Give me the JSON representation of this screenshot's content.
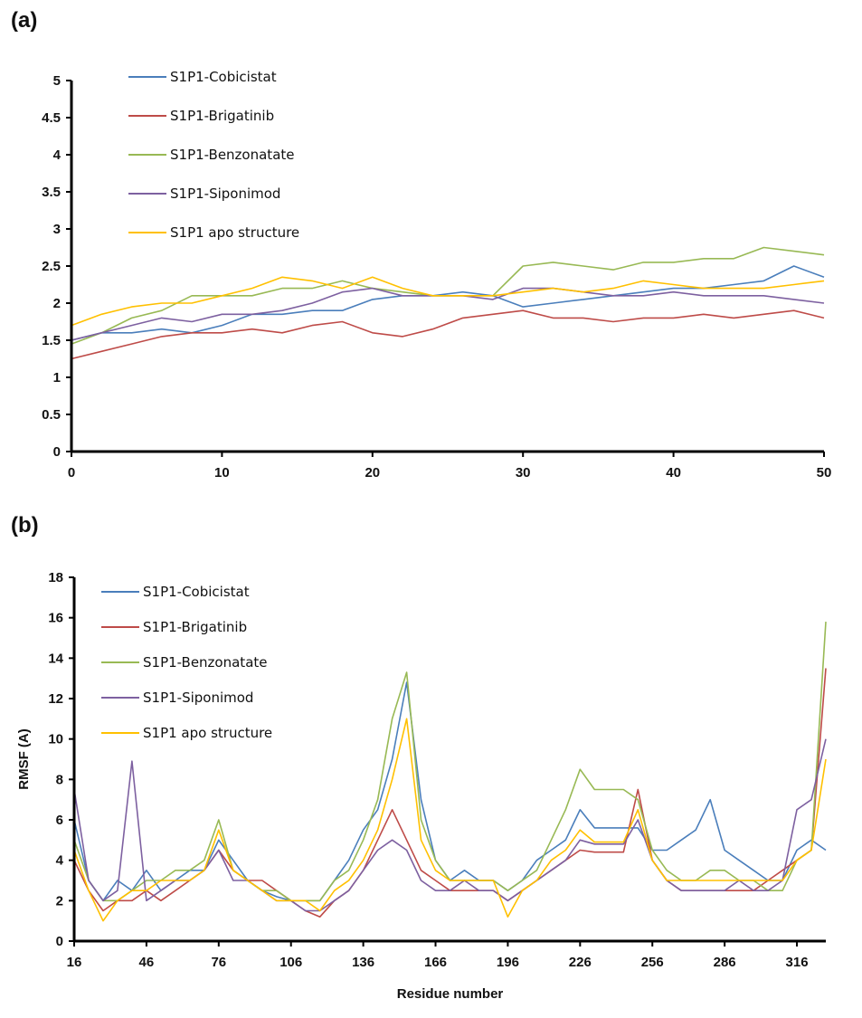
{
  "chart_data": [
    {
      "type": "line",
      "panel_label": "(a)",
      "xlabel": "",
      "ylabel": "",
      "xlim": [
        0,
        50
      ],
      "ylim": [
        0,
        5
      ],
      "xticks": [
        0,
        10,
        20,
        30,
        40,
        50
      ],
      "yticks": [
        0,
        0.5,
        1,
        1.5,
        2,
        2.5,
        3,
        3.5,
        4,
        4.5,
        5
      ],
      "grid": false,
      "legend_position": "top-left",
      "x": [
        0,
        2,
        4,
        6,
        8,
        10,
        12,
        14,
        16,
        18,
        20,
        22,
        24,
        26,
        28,
        30,
        32,
        34,
        36,
        38,
        40,
        42,
        44,
        46,
        48,
        50
      ],
      "series": [
        {
          "name": "S1P1-Cobicistat",
          "color": "#4a7ebb",
          "values": [
            1.5,
            1.6,
            1.6,
            1.65,
            1.6,
            1.7,
            1.85,
            1.85,
            1.9,
            1.9,
            2.05,
            2.1,
            2.1,
            2.15,
            2.1,
            1.95,
            2.0,
            2.05,
            2.1,
            2.15,
            2.2,
            2.2,
            2.25,
            2.3,
            2.5,
            2.35
          ]
        },
        {
          "name": "S1P1-Brigatinib",
          "color": "#be4b48",
          "values": [
            1.25,
            1.35,
            1.45,
            1.55,
            1.6,
            1.6,
            1.65,
            1.6,
            1.7,
            1.75,
            1.6,
            1.55,
            1.65,
            1.8,
            1.85,
            1.9,
            1.8,
            1.8,
            1.75,
            1.8,
            1.8,
            1.85,
            1.8,
            1.85,
            1.9,
            1.8
          ]
        },
        {
          "name": "S1P1-Benzonatate",
          "color": "#98b954",
          "values": [
            1.45,
            1.6,
            1.8,
            1.9,
            2.1,
            2.1,
            2.1,
            2.2,
            2.2,
            2.3,
            2.2,
            2.15,
            2.1,
            2.1,
            2.1,
            2.5,
            2.55,
            2.5,
            2.45,
            2.55,
            2.55,
            2.6,
            2.6,
            2.75,
            2.7,
            2.65
          ]
        },
        {
          "name": "S1P1-Siponimod",
          "color": "#7d60a0",
          "values": [
            1.5,
            1.6,
            1.7,
            1.8,
            1.75,
            1.85,
            1.85,
            1.9,
            2.0,
            2.15,
            2.2,
            2.1,
            2.1,
            2.1,
            2.05,
            2.2,
            2.2,
            2.15,
            2.1,
            2.1,
            2.15,
            2.1,
            2.1,
            2.1,
            2.05,
            2.0
          ]
        },
        {
          "name": "S1P1 apo structure",
          "color": "#ffc000",
          "values": [
            1.7,
            1.85,
            1.95,
            2.0,
            2.0,
            2.1,
            2.2,
            2.35,
            2.3,
            2.2,
            2.35,
            2.2,
            2.1,
            2.1,
            2.1,
            2.15,
            2.2,
            2.15,
            2.2,
            2.3,
            2.25,
            2.2,
            2.2,
            2.2,
            2.25,
            2.3
          ]
        }
      ]
    },
    {
      "type": "line",
      "panel_label": "(b)",
      "xlabel": "Residue number",
      "ylabel": "RMSF (A)",
      "xlim": [
        16,
        328
      ],
      "ylim": [
        0,
        18
      ],
      "xticks": [
        16,
        46,
        76,
        106,
        136,
        166,
        196,
        226,
        256,
        286,
        316
      ],
      "yticks": [
        0,
        2,
        4,
        6,
        8,
        10,
        12,
        14,
        16,
        18
      ],
      "grid": false,
      "legend_position": "top-left",
      "x": [
        16,
        22,
        28,
        34,
        40,
        46,
        52,
        58,
        64,
        70,
        76,
        82,
        88,
        94,
        100,
        106,
        112,
        118,
        124,
        130,
        136,
        142,
        148,
        154,
        160,
        166,
        172,
        178,
        184,
        190,
        196,
        202,
        208,
        214,
        220,
        226,
        232,
        238,
        244,
        250,
        256,
        262,
        268,
        274,
        280,
        286,
        292,
        298,
        304,
        310,
        316,
        322,
        328
      ],
      "series": [
        {
          "name": "S1P1-Cobicistat",
          "color": "#4a7ebb",
          "values": [
            6,
            3,
            2,
            3,
            2.5,
            3.5,
            2.5,
            3,
            3.5,
            3.5,
            5,
            4,
            3,
            2.5,
            2.2,
            2,
            2,
            2,
            3,
            4,
            5.5,
            6.5,
            9,
            12.8,
            7,
            4,
            3,
            3.5,
            3,
            3,
            2.5,
            3,
            4,
            4.5,
            5,
            6.5,
            5.6,
            5.6,
            5.6,
            5.6,
            4.5,
            4.5,
            5,
            5.5,
            7,
            4.5,
            4,
            3.5,
            3,
            3,
            4.5,
            5,
            4.5
          ]
        },
        {
          "name": "S1P1-Brigatinib",
          "color": "#be4b48",
          "values": [
            4,
            2.5,
            1.5,
            2,
            2,
            2.5,
            2,
            2.5,
            3,
            3.5,
            4.5,
            3.5,
            3,
            3,
            2.5,
            2,
            1.5,
            1.2,
            2,
            2.5,
            3.5,
            5,
            6.5,
            5,
            3.5,
            3,
            2.5,
            2.5,
            2.5,
            2.5,
            2,
            2.5,
            3,
            3.5,
            4,
            4.5,
            4.4,
            4.4,
            4.4,
            7.5,
            4,
            3,
            2.5,
            2.5,
            2.5,
            2.5,
            2.5,
            2.5,
            3,
            3.5,
            4,
            4.5,
            13.5
          ]
        },
        {
          "name": "S1P1-Benzonatate",
          "color": "#98b954",
          "values": [
            5,
            3,
            2,
            2,
            2.5,
            3,
            3,
            3.5,
            3.5,
            4,
            6,
            3.5,
            3,
            2.5,
            2.5,
            2,
            2,
            2,
            3,
            3.5,
            5,
            7,
            11,
            13.3,
            6,
            4,
            3,
            3,
            3,
            3,
            2.5,
            3,
            3.5,
            5,
            6.5,
            8.5,
            7.5,
            7.5,
            7.5,
            7,
            4.5,
            3.5,
            3,
            3,
            3.5,
            3.5,
            3,
            3,
            2.5,
            2.5,
            4,
            4.5,
            15.8
          ]
        },
        {
          "name": "S1P1-Siponimod",
          "color": "#7d60a0",
          "values": [
            7.5,
            3,
            2,
            2.5,
            8.9,
            2,
            2.5,
            3,
            3,
            3.5,
            4.5,
            3,
            3,
            2.5,
            2,
            2,
            1.5,
            1.5,
            2,
            2.5,
            3.5,
            4.5,
            5,
            4.5,
            3,
            2.5,
            2.5,
            3,
            2.5,
            2.5,
            2,
            2.5,
            3,
            3.5,
            4,
            5,
            4.8,
            4.8,
            4.8,
            6,
            4,
            3,
            2.5,
            2.5,
            2.5,
            2.5,
            3,
            2.5,
            2.5,
            3,
            6.5,
            7,
            10
          ]
        },
        {
          "name": "S1P1 apo structure",
          "color": "#ffc000",
          "values": [
            4.5,
            2.5,
            1,
            2,
            2.5,
            2.5,
            3,
            3,
            3,
            3.5,
            5.5,
            3.5,
            3,
            2.5,
            2,
            2,
            2,
            1.5,
            2.5,
            3,
            4,
            5.5,
            8,
            11,
            5,
            3.5,
            3,
            3,
            3,
            3,
            1.2,
            2.5,
            3,
            4,
            4.5,
            5.5,
            4.9,
            4.9,
            4.9,
            6.5,
            4,
            3,
            3,
            3,
            3,
            3,
            3,
            3,
            3,
            3,
            4,
            4.5,
            9
          ]
        }
      ]
    }
  ]
}
